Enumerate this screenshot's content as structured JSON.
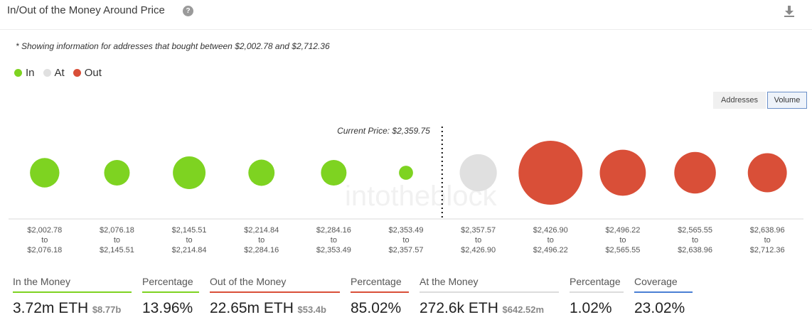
{
  "header": {
    "title": "In/Out of the Money Around Price",
    "help_glyph": "?",
    "download_icon": "download-icon"
  },
  "note": "* Showing information for addresses that bought between $2,002.78 and $2,712.36",
  "legend": [
    {
      "label": "In",
      "color": "#7ed321"
    },
    {
      "label": "At",
      "color": "#e0e0e0"
    },
    {
      "label": "Out",
      "color": "#d94f38"
    }
  ],
  "toggles": {
    "addresses": "Addresses",
    "volume": "Volume",
    "selected": "Volume"
  },
  "watermark": "intotheblock",
  "chart_data": {
    "type": "bubble",
    "current_price_label": "Current Price: $2,359.75",
    "current_price_after_index": 5,
    "buckets": [
      {
        "from": "$2,002.78",
        "to": "$2,076.18",
        "status": "In",
        "relative_size": 0.46
      },
      {
        "from": "$2,076.18",
        "to": "$2,145.51",
        "status": "In",
        "relative_size": 0.4
      },
      {
        "from": "$2,145.51",
        "to": "$2,214.84",
        "status": "In",
        "relative_size": 0.51
      },
      {
        "from": "$2,214.84",
        "to": "$2,284.16",
        "status": "In",
        "relative_size": 0.41
      },
      {
        "from": "$2,284.16",
        "to": "$2,353.49",
        "status": "In",
        "relative_size": 0.4
      },
      {
        "from": "$2,353.49",
        "to": "$2,357.57",
        "status": "In",
        "relative_size": 0.22
      },
      {
        "from": "$2,357.57",
        "to": "$2,426.90",
        "status": "At",
        "relative_size": 0.58
      },
      {
        "from": "$2,426.90",
        "to": "$2,496.22",
        "status": "Out",
        "relative_size": 1.0
      },
      {
        "from": "$2,496.22",
        "to": "$2,565.55",
        "status": "Out",
        "relative_size": 0.72
      },
      {
        "from": "$2,565.55",
        "to": "$2,638.96",
        "status": "Out",
        "relative_size": 0.65
      },
      {
        "from": "$2,638.96",
        "to": "$2,712.36",
        "status": "Out",
        "relative_size": 0.61
      }
    ],
    "to_word": "to"
  },
  "stats": [
    {
      "label": "In the Money",
      "value": "3.72m ETH",
      "sub": "$8.77b",
      "color": "#7ed321"
    },
    {
      "label": "Percentage",
      "value": "13.96%",
      "sub": "",
      "color": "#7ed321"
    },
    {
      "label": "Out of the Money",
      "value": "22.65m ETH",
      "sub": "$53.4b",
      "color": "#d94f38"
    },
    {
      "label": "Percentage",
      "value": "85.02%",
      "sub": "",
      "color": "#d94f38"
    },
    {
      "label": "At the Money",
      "value": "272.6k ETH",
      "sub": "$642.52m",
      "color": "#dcdcdc"
    },
    {
      "label": "Percentage",
      "value": "1.02%",
      "sub": "",
      "color": "#dcdcdc"
    },
    {
      "label": "Coverage",
      "value": "23.02%",
      "sub": "",
      "color": "#4a7fd4"
    }
  ]
}
